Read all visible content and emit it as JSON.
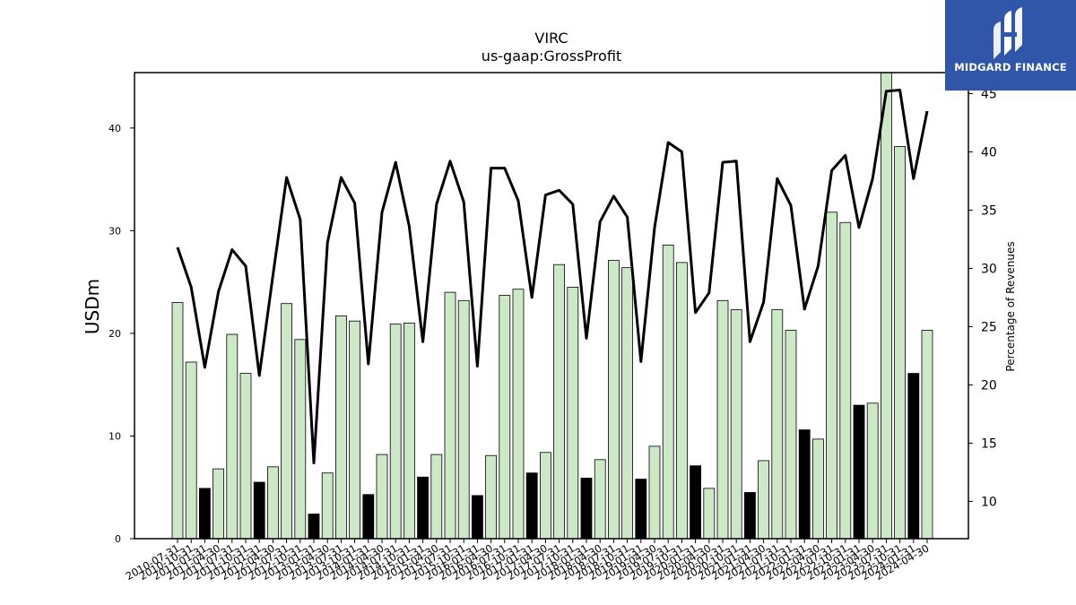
{
  "logo": {
    "text": "MIDGARD FINANCE",
    "icon": "midgard-logo-icon",
    "bg_color": "#2f56a8"
  },
  "chart_data": {
    "type": "bar",
    "title": "VIRC",
    "subtitle": "us-gaap:GrossProfit",
    "ylabel": "USDm",
    "y2label": "Percentage of Revenues",
    "ylim": [
      0,
      45.4
    ],
    "y2lim": [
      6.8,
      46.8
    ],
    "yticks": [
      0,
      10,
      20,
      30,
      40
    ],
    "y2ticks": [
      10,
      15,
      20,
      25,
      30,
      35,
      40,
      45
    ],
    "grid": false,
    "legend": "none",
    "colors": {
      "bar_light": "#cde8c6",
      "bar_dark": "#000000",
      "line": "#000000"
    },
    "categories": [
      "2010-07-31",
      "2010-10-31",
      "2011-01-31",
      "2011-04-30",
      "2011-07-31",
      "2011-10-31",
      "2012-01-31",
      "2012-04-30",
      "2012-07-31",
      "2012-10-31",
      "2013-01-31",
      "2013-04-30",
      "2013-07-31",
      "2013-10-31",
      "2014-01-31",
      "2014-04-30",
      "2014-07-31",
      "2014-10-31",
      "2015-01-31",
      "2015-04-30",
      "2015-07-31",
      "2015-10-31",
      "2016-01-31",
      "2016-04-30",
      "2016-07-31",
      "2016-10-31",
      "2017-01-31",
      "2017-04-30",
      "2017-07-31",
      "2017-10-31",
      "2018-01-31",
      "2018-04-30",
      "2018-07-31",
      "2018-10-31",
      "2019-01-31",
      "2019-04-30",
      "2019-07-31",
      "2019-10-31",
      "2020-01-31",
      "2020-04-30",
      "2020-07-31",
      "2020-10-31",
      "2021-01-31",
      "2021-04-30",
      "2021-07-31",
      "2021-10-31",
      "2022-01-31",
      "2022-04-30",
      "2022-07-31",
      "2022-10-31",
      "2023-01-31",
      "2023-04-30",
      "2023-07-31",
      "2023-10-31",
      "2024-01-31",
      "2024-04-30"
    ],
    "series": [
      {
        "kind": "bar",
        "axis": "left",
        "values": [
          23.0,
          17.2,
          4.9,
          6.8,
          19.9,
          16.1,
          5.5,
          7.0,
          22.9,
          19.4,
          2.4,
          6.4,
          21.7,
          21.2,
          4.3,
          8.2,
          20.9,
          21.0,
          6.0,
          8.2,
          24.0,
          23.2,
          4.2,
          8.1,
          23.7,
          24.3,
          6.4,
          8.4,
          26.7,
          24.5,
          5.9,
          7.7,
          27.1,
          26.4,
          5.8,
          9.0,
          28.6,
          26.9,
          7.1,
          4.9,
          23.2,
          22.3,
          4.5,
          7.6,
          22.3,
          20.3,
          10.6,
          9.7,
          31.8,
          30.8,
          13.0,
          13.2,
          45.5,
          38.2,
          16.1,
          20.3
        ],
        "dark": [
          false,
          false,
          true,
          false,
          false,
          false,
          true,
          false,
          false,
          false,
          true,
          false,
          false,
          false,
          true,
          false,
          false,
          false,
          true,
          false,
          false,
          false,
          true,
          false,
          false,
          false,
          true,
          false,
          false,
          false,
          true,
          false,
          false,
          false,
          true,
          false,
          false,
          false,
          true,
          false,
          false,
          false,
          true,
          false,
          false,
          false,
          true,
          false,
          false,
          false,
          true,
          false,
          false,
          false,
          true,
          false
        ]
      },
      {
        "kind": "line",
        "axis": "right",
        "values": [
          31.8,
          28.4,
          21.5,
          28.0,
          31.6,
          30.2,
          20.8,
          29.4,
          37.8,
          34.2,
          13.3,
          32.2,
          37.8,
          35.6,
          21.8,
          34.8,
          39.1,
          33.6,
          23.7,
          35.5,
          39.2,
          35.7,
          21.6,
          38.6,
          38.6,
          35.8,
          27.5,
          36.3,
          36.7,
          35.5,
          24.0,
          34.0,
          36.2,
          34.4,
          22.0,
          33.5,
          40.8,
          40.0,
          26.2,
          27.9,
          39.1,
          39.2,
          23.7,
          27.1,
          37.7,
          35.4,
          26.5,
          30.2,
          38.4,
          39.7,
          33.5,
          37.7,
          45.2,
          45.3,
          37.7,
          43.5
        ]
      }
    ]
  }
}
